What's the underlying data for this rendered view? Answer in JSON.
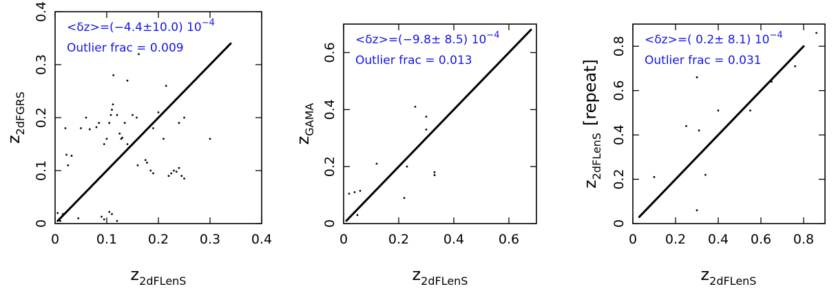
{
  "chart_data": [
    {
      "type": "scatter",
      "xlabel": {
        "main": "z",
        "sub": "2dFLenS"
      },
      "ylabel": {
        "main": "z",
        "sub": "2dFGRS"
      },
      "xlim": [
        0,
        0.4
      ],
      "ylim": [
        0,
        0.4
      ],
      "xticks": [
        0,
        0.1,
        0.2,
        0.3,
        0.4
      ],
      "xtick_labels": [
        "0",
        "0.1",
        "0.2",
        "0.3",
        "0.4"
      ],
      "yticks": [
        0,
        0.1,
        0.2,
        0.3,
        0.4
      ],
      "ytick_labels": [
        "0",
        "0.1",
        "0.2",
        "0.3",
        "0.4"
      ],
      "annotations": {
        "mean_offset": {
          "prefix": "<δz>=(−4.4±10.0) 10",
          "exponent": "−4"
        },
        "outlier_frac": "Outlier frac = 0.009"
      },
      "diagonal": {
        "start": 0.005,
        "end": 0.34,
        "count": 300
      },
      "outliers": [
        [
          0.005,
          0.02
        ],
        [
          0.01,
          0.005
        ],
        [
          0.015,
          0.018
        ],
        [
          0.02,
          0.18
        ],
        [
          0.022,
          0.13
        ],
        [
          0.025,
          0.11
        ],
        [
          0.032,
          0.128
        ],
        [
          0.045,
          0.01
        ],
        [
          0.05,
          0.18
        ],
        [
          0.06,
          0.2
        ],
        [
          0.067,
          0.178
        ],
        [
          0.07,
          0.07
        ],
        [
          0.08,
          0.182
        ],
        [
          0.085,
          0.19
        ],
        [
          0.09,
          0.013
        ],
        [
          0.095,
          0.15
        ],
        [
          0.1,
          0.16
        ],
        [
          0.105,
          0.19
        ],
        [
          0.108,
          0.205
        ],
        [
          0.11,
          0.215
        ],
        [
          0.112,
          0.225
        ],
        [
          0.113,
          0.28
        ],
        [
          0.12,
          0.205
        ],
        [
          0.125,
          0.17
        ],
        [
          0.128,
          0.16
        ],
        [
          0.13,
          0.162
        ],
        [
          0.135,
          0.19
        ],
        [
          0.14,
          0.27
        ],
        [
          0.14,
          0.15
        ],
        [
          0.15,
          0.205
        ],
        [
          0.158,
          0.2
        ],
        [
          0.16,
          0.11
        ],
        [
          0.162,
          0.32
        ],
        [
          0.175,
          0.12
        ],
        [
          0.178,
          0.115
        ],
        [
          0.185,
          0.1
        ],
        [
          0.19,
          0.095
        ],
        [
          0.19,
          0.18
        ],
        [
          0.2,
          0.21
        ],
        [
          0.2,
          0.2
        ],
        [
          0.21,
          0.16
        ],
        [
          0.215,
          0.26
        ],
        [
          0.22,
          0.09
        ],
        [
          0.225,
          0.095
        ],
        [
          0.23,
          0.1
        ],
        [
          0.235,
          0.098
        ],
        [
          0.24,
          0.105
        ],
        [
          0.24,
          0.19
        ],
        [
          0.245,
          0.09
        ],
        [
          0.25,
          0.085
        ],
        [
          0.25,
          0.2
        ],
        [
          0.3,
          0.16
        ],
        [
          0.11,
          0.018
        ],
        [
          0.12,
          0.005
        ],
        [
          0.105,
          0.022
        ],
        [
          0.095,
          0.008
        ]
      ]
    },
    {
      "type": "scatter",
      "xlabel": {
        "main": "z",
        "sub": "2dFLenS"
      },
      "ylabel": {
        "main": "z",
        "sub": "GAMA"
      },
      "xlim": [
        0,
        0.7
      ],
      "ylim": [
        0,
        0.7
      ],
      "xticks": [
        0,
        0.2,
        0.4,
        0.6
      ],
      "xtick_labels": [
        "0",
        "0.2",
        "0.4",
        "0.6"
      ],
      "yticks": [
        0,
        0.2,
        0.4,
        0.6
      ],
      "ytick_labels": [
        "0",
        "0.2",
        "0.4",
        "0.6"
      ],
      "annotations": {
        "mean_offset": {
          "prefix": "<δz>=(−9.8± 8.5) 10",
          "exponent": "−4"
        },
        "outlier_frac": "Outlier frac = 0.013"
      },
      "diagonal": {
        "start": 0.01,
        "end": 0.68,
        "count": 330
      },
      "outliers": [
        [
          0.02,
          0.105
        ],
        [
          0.04,
          0.11
        ],
        [
          0.05,
          0.03
        ],
        [
          0.06,
          0.115
        ],
        [
          0.12,
          0.21
        ],
        [
          0.22,
          0.09
        ],
        [
          0.23,
          0.2
        ],
        [
          0.26,
          0.41
        ],
        [
          0.3,
          0.375
        ],
        [
          0.3,
          0.33
        ],
        [
          0.33,
          0.18
        ],
        [
          0.33,
          0.17
        ]
      ]
    },
    {
      "type": "scatter",
      "xlabel": {
        "main": "z",
        "sub": "2dFLenS"
      },
      "ylabel": {
        "main": "z",
        "sub": "2dFLenS",
        "suffix": "[repeat]"
      },
      "xlim": [
        0,
        0.9
      ],
      "ylim": [
        0,
        0.9
      ],
      "xticks": [
        0,
        0.2,
        0.4,
        0.6,
        0.8
      ],
      "xtick_labels": [
        "0",
        "0.2",
        "0.4",
        "0.6",
        "0.8"
      ],
      "yticks": [
        0,
        0.2,
        0.4,
        0.6,
        0.8
      ],
      "ytick_labels": [
        "0",
        "0.2",
        "0.4",
        "0.6",
        "0.8"
      ],
      "annotations": {
        "mean_offset": {
          "prefix": "<δz>=( 0.2± 8.1) 10",
          "exponent": "−4"
        },
        "outlier_frac": "Outlier frac = 0.031"
      },
      "diagonal": {
        "start": 0.03,
        "end": 0.8,
        "count": 320
      },
      "outliers": [
        [
          0.1,
          0.21
        ],
        [
          0.25,
          0.44
        ],
        [
          0.3,
          0.66
        ],
        [
          0.3,
          0.06
        ],
        [
          0.31,
          0.42
        ],
        [
          0.34,
          0.22
        ],
        [
          0.4,
          0.51
        ],
        [
          0.55,
          0.51
        ],
        [
          0.65,
          0.64
        ],
        [
          0.76,
          0.71
        ],
        [
          0.86,
          0.86
        ]
      ]
    }
  ]
}
